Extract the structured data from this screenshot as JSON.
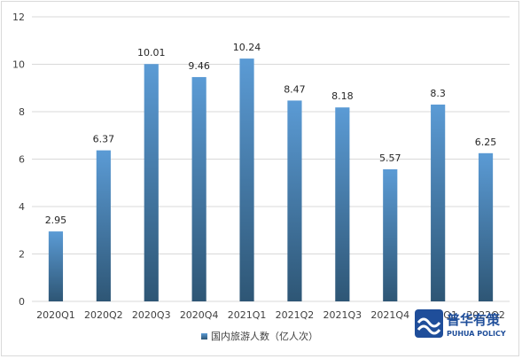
{
  "chart_data": {
    "type": "bar",
    "categories": [
      "2020Q1",
      "2020Q2",
      "2020Q3",
      "2020Q4",
      "2021Q1",
      "2021Q2",
      "2021Q3",
      "2021Q4",
      "2022Q1",
      "2022Q2"
    ],
    "series": [
      {
        "name": "国内旅游人数（亿人次）",
        "values": [
          2.95,
          6.37,
          10.01,
          9.46,
          10.24,
          8.47,
          8.18,
          5.57,
          8.3,
          6.25
        ]
      }
    ],
    "title": "",
    "xlabel": "",
    "ylabel": "",
    "ylim": [
      0,
      12
    ],
    "yticks": [
      0,
      2,
      4,
      6,
      8,
      10,
      12
    ],
    "grid": true,
    "legend_position": "bottom-center",
    "colors": {
      "bar_top": "#5b9bd5",
      "bar_bottom": "#2e5675",
      "grid": "#d9d9d9"
    }
  },
  "watermark": {
    "main": "普华有策",
    "sub": "PUHUA POLICY",
    "icon": "wave-logo-icon"
  }
}
